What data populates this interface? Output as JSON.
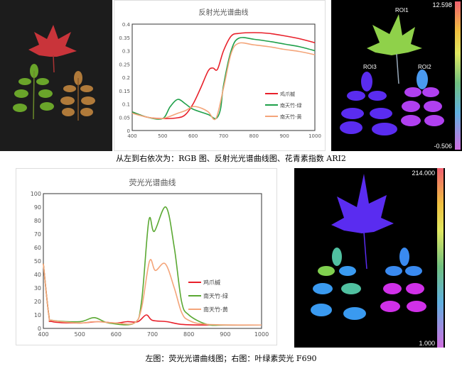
{
  "top_row": {
    "rgb_image": {
      "description_label": "RGB"
    },
    "ari2_image": {
      "colorbar_max": "12.598",
      "colorbar_min": "-0.506",
      "roi_labels": [
        "ROI1",
        "ROI2",
        "ROI3"
      ]
    },
    "caption": "从左到右依次为：RGB 图、反射光光谱曲线图、花青素指数 ARI2"
  },
  "bottom_row": {
    "f690_image": {
      "colorbar_max": "214.000",
      "colorbar_min": "1.000"
    },
    "caption": "左图：荧光光谱曲线图；右图：叶绿素荧光 F690"
  },
  "colors": {
    "red": "#e8202a",
    "green": "#1fa04a",
    "green2": "#5aa832",
    "orange": "#f4a57a"
  },
  "chart_data": [
    {
      "type": "line",
      "title": "反射光光谱曲线",
      "xlim": [
        400,
        1000
      ],
      "ylim": [
        0,
        0.4
      ],
      "xticks": [
        "400",
        "500",
        "600",
        "700",
        "800",
        "900",
        "1000"
      ],
      "yticks": [
        "0",
        "0.05",
        "0.1",
        "0.15",
        "0.2",
        "0.25",
        "0.3",
        "0.35",
        "0.4"
      ],
      "grid": false,
      "legend_position": "right-middle",
      "series": [
        {
          "name": "鸡爪槭",
          "color": "#e8202a",
          "x": [
            400,
            450,
            500,
            550,
            575,
            600,
            625,
            650,
            665,
            680,
            700,
            725,
            750,
            800,
            850,
            900,
            950,
            1000
          ],
          "y": [
            0.07,
            0.05,
            0.045,
            0.048,
            0.06,
            0.1,
            0.16,
            0.225,
            0.235,
            0.23,
            0.3,
            0.355,
            0.365,
            0.368,
            0.365,
            0.356,
            0.345,
            0.33
          ]
        },
        {
          "name": "南天竹-绿",
          "color": "#1fa04a",
          "x": [
            400,
            450,
            500,
            525,
            550,
            575,
            600,
            650,
            675,
            690,
            700,
            725,
            750,
            800,
            850,
            900,
            950,
            1000
          ],
          "y": [
            0.07,
            0.05,
            0.045,
            0.09,
            0.117,
            0.1,
            0.08,
            0.06,
            0.045,
            0.08,
            0.17,
            0.3,
            0.347,
            0.343,
            0.335,
            0.325,
            0.315,
            0.3
          ]
        },
        {
          "name": "南天竹-黄",
          "color": "#f4a57a",
          "x": [
            400,
            450,
            500,
            550,
            575,
            600,
            625,
            650,
            675,
            700,
            725,
            750,
            800,
            850,
            900,
            950,
            1000
          ],
          "y": [
            0.065,
            0.05,
            0.045,
            0.065,
            0.075,
            0.09,
            0.085,
            0.07,
            0.045,
            0.16,
            0.29,
            0.328,
            0.322,
            0.315,
            0.305,
            0.297,
            0.285
          ]
        }
      ]
    },
    {
      "type": "line",
      "title": "荧光光谱曲线",
      "xlim": [
        400,
        1000
      ],
      "ylim": [
        0,
        100
      ],
      "xticks": [
        "400",
        "500",
        "600",
        "700",
        "800",
        "900",
        "1000"
      ],
      "yticks": [
        "0",
        "10",
        "20",
        "30",
        "40",
        "50",
        "60",
        "70",
        "80",
        "90",
        "100"
      ],
      "grid": false,
      "legend_position": "right-bottom",
      "series": [
        {
          "name": "鸡爪槭",
          "color": "#e8202a",
          "x": [
            400,
            415,
            425,
            500,
            550,
            600,
            630,
            660,
            683,
            700,
            740,
            780,
            850,
            1000
          ],
          "y": [
            48,
            10,
            5,
            4,
            5,
            4,
            5,
            5,
            10,
            6,
            5,
            3,
            2.5,
            2.5
          ]
        },
        {
          "name": "南天竹-绿",
          "color": "#5aa832",
          "x": [
            400,
            415,
            425,
            500,
            540,
            580,
            650,
            670,
            690,
            705,
            737,
            760,
            780,
            800,
            850,
            900,
            1000
          ],
          "y": [
            48,
            10,
            6,
            5,
            8,
            4,
            4,
            20,
            80,
            72,
            90,
            60,
            20,
            10,
            3,
            2.5,
            2.5
          ]
        },
        {
          "name": "南天竹-黄",
          "color": "#f4a57a",
          "x": [
            400,
            415,
            425,
            500,
            540,
            600,
            650,
            670,
            692,
            708,
            735,
            760,
            780,
            800,
            850,
            1000
          ],
          "y": [
            48,
            10,
            6,
            4,
            5,
            4,
            4,
            15,
            50,
            43,
            48,
            30,
            12,
            6,
            3,
            2.5
          ]
        }
      ]
    }
  ]
}
